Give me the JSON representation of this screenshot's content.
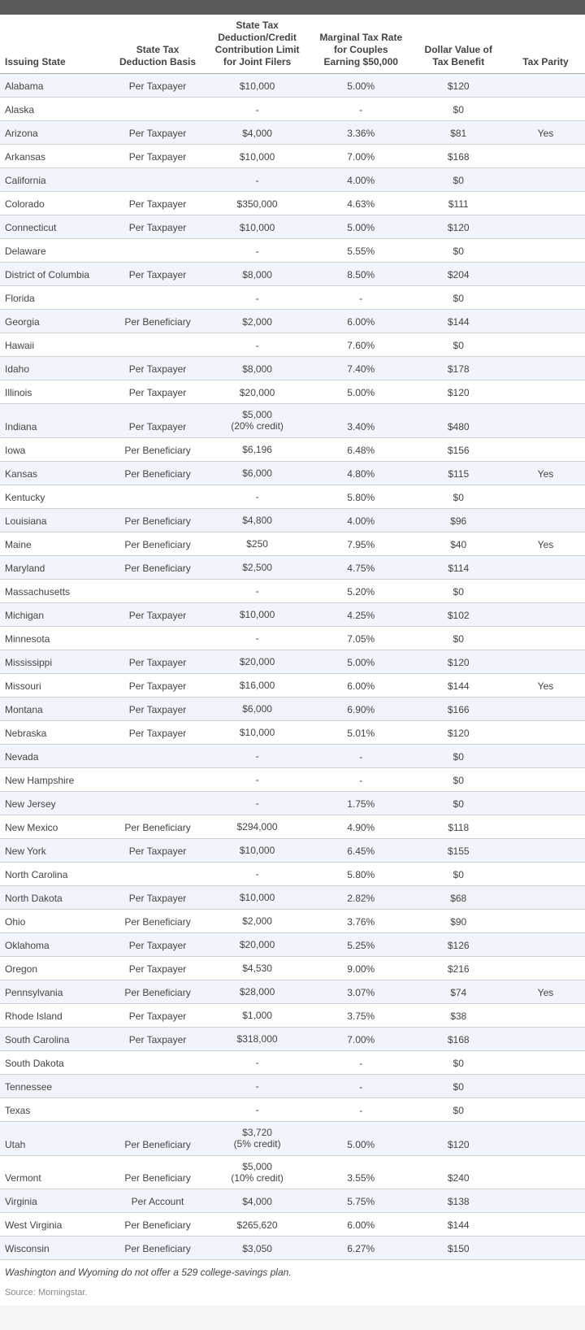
{
  "columns": [
    "Issuing State",
    "State Tax Deduction Basis",
    "State Tax Deduction/Credit Contribution Limit for Joint Filers",
    "Marginal Tax Rate for Couples Earning $50,000",
    "Dollar Value of Tax Benefit",
    "Tax Parity"
  ],
  "rows": [
    {
      "state": "Alabama",
      "basis": "Per Taxpayer",
      "limit": "$10,000",
      "rate": "5.00%",
      "value": "$120",
      "parity": ""
    },
    {
      "state": "Alaska",
      "basis": "",
      "limit": "-",
      "rate": "-",
      "value": "$0",
      "parity": ""
    },
    {
      "state": "Arizona",
      "basis": "Per Taxpayer",
      "limit": "$4,000",
      "rate": "3.36%",
      "value": "$81",
      "parity": "Yes"
    },
    {
      "state": "Arkansas",
      "basis": "Per Taxpayer",
      "limit": "$10,000",
      "rate": "7.00%",
      "value": "$168",
      "parity": ""
    },
    {
      "state": "California",
      "basis": "",
      "limit": "-",
      "rate": "4.00%",
      "value": "$0",
      "parity": ""
    },
    {
      "state": "Colorado",
      "basis": "Per Taxpayer",
      "limit": "$350,000",
      "rate": "4.63%",
      "value": "$111",
      "parity": ""
    },
    {
      "state": "Connecticut",
      "basis": "Per Taxpayer",
      "limit": "$10,000",
      "rate": "5.00%",
      "value": "$120",
      "parity": ""
    },
    {
      "state": "Delaware",
      "basis": "",
      "limit": "-",
      "rate": "5.55%",
      "value": "$0",
      "parity": ""
    },
    {
      "state": "District of Columbia",
      "basis": "Per Taxpayer",
      "limit": "$8,000",
      "rate": "8.50%",
      "value": "$204",
      "parity": ""
    },
    {
      "state": "Florida",
      "basis": "",
      "limit": "-",
      "rate": "-",
      "value": "$0",
      "parity": ""
    },
    {
      "state": "Georgia",
      "basis": "Per Beneficiary",
      "limit": "$2,000",
      "rate": "6.00%",
      "value": "$144",
      "parity": ""
    },
    {
      "state": "Hawaii",
      "basis": "",
      "limit": "-",
      "rate": "7.60%",
      "value": "$0",
      "parity": ""
    },
    {
      "state": "Idaho",
      "basis": "Per Taxpayer",
      "limit": "$8,000",
      "rate": "7.40%",
      "value": "$178",
      "parity": ""
    },
    {
      "state": "Illinois",
      "basis": "Per Taxpayer",
      "limit": "$20,000",
      "rate": "5.00%",
      "value": "$120",
      "parity": ""
    },
    {
      "state": "Indiana",
      "basis": "Per Taxpayer",
      "limit": "$5,000\n(20% credit)",
      "rate": "3.40%",
      "value": "$480",
      "parity": ""
    },
    {
      "state": "Iowa",
      "basis": "Per Beneficiary",
      "limit": "$6,196",
      "rate": "6.48%",
      "value": "$156",
      "parity": ""
    },
    {
      "state": "Kansas",
      "basis": "Per Beneficiary",
      "limit": "$6,000",
      "rate": "4.80%",
      "value": "$115",
      "parity": "Yes"
    },
    {
      "state": "Kentucky",
      "basis": "",
      "limit": "-",
      "rate": "5.80%",
      "value": "$0",
      "parity": ""
    },
    {
      "state": "Louisiana",
      "basis": "Per Beneficiary",
      "limit": "$4,800",
      "rate": "4.00%",
      "value": "$96",
      "parity": ""
    },
    {
      "state": "Maine",
      "basis": "Per Beneficiary",
      "limit": "$250",
      "rate": "7.95%",
      "value": "$40",
      "parity": "Yes"
    },
    {
      "state": "Maryland",
      "basis": "Per Beneficiary",
      "limit": "$2,500",
      "rate": "4.75%",
      "value": "$114",
      "parity": ""
    },
    {
      "state": "Massachusetts",
      "basis": "",
      "limit": "-",
      "rate": "5.20%",
      "value": "$0",
      "parity": ""
    },
    {
      "state": "Michigan",
      "basis": "Per Taxpayer",
      "limit": "$10,000",
      "rate": "4.25%",
      "value": "$102",
      "parity": ""
    },
    {
      "state": "Minnesota",
      "basis": "",
      "limit": "-",
      "rate": "7.05%",
      "value": "$0",
      "parity": ""
    },
    {
      "state": "Mississippi",
      "basis": "Per Taxpayer",
      "limit": "$20,000",
      "rate": "5.00%",
      "value": "$120",
      "parity": ""
    },
    {
      "state": "Missouri",
      "basis": "Per Taxpayer",
      "limit": "$16,000",
      "rate": "6.00%",
      "value": "$144",
      "parity": "Yes"
    },
    {
      "state": "Montana",
      "basis": "Per Taxpayer",
      "limit": "$6,000",
      "rate": "6.90%",
      "value": "$166",
      "parity": ""
    },
    {
      "state": "Nebraska",
      "basis": "Per Taxpayer",
      "limit": "$10,000",
      "rate": "5.01%",
      "value": "$120",
      "parity": ""
    },
    {
      "state": "Nevada",
      "basis": "",
      "limit": "-",
      "rate": "-",
      "value": "$0",
      "parity": ""
    },
    {
      "state": "New Hampshire",
      "basis": "",
      "limit": "-",
      "rate": "-",
      "value": "$0",
      "parity": ""
    },
    {
      "state": "New Jersey",
      "basis": "",
      "limit": "-",
      "rate": "1.75%",
      "value": "$0",
      "parity": ""
    },
    {
      "state": "New Mexico",
      "basis": "Per Beneficiary",
      "limit": "$294,000",
      "rate": "4.90%",
      "value": "$118",
      "parity": ""
    },
    {
      "state": "New York",
      "basis": "Per Taxpayer",
      "limit": "$10,000",
      "rate": "6.45%",
      "value": "$155",
      "parity": ""
    },
    {
      "state": "North Carolina",
      "basis": "",
      "limit": "-",
      "rate": "5.80%",
      "value": "$0",
      "parity": ""
    },
    {
      "state": "North Dakota",
      "basis": "Per Taxpayer",
      "limit": "$10,000",
      "rate": "2.82%",
      "value": "$68",
      "parity": ""
    },
    {
      "state": "Ohio",
      "basis": "Per Beneficiary",
      "limit": "$2,000",
      "rate": "3.76%",
      "value": "$90",
      "parity": ""
    },
    {
      "state": "Oklahoma",
      "basis": "Per Taxpayer",
      "limit": "$20,000",
      "rate": "5.25%",
      "value": "$126",
      "parity": ""
    },
    {
      "state": "Oregon",
      "basis": "Per Taxpayer",
      "limit": "$4,530",
      "rate": "9.00%",
      "value": "$216",
      "parity": ""
    },
    {
      "state": "Pennsylvania",
      "basis": "Per Beneficiary",
      "limit": "$28,000",
      "rate": "3.07%",
      "value": "$74",
      "parity": "Yes"
    },
    {
      "state": "Rhode Island",
      "basis": "Per Taxpayer",
      "limit": "$1,000",
      "rate": "3.75%",
      "value": "$38",
      "parity": ""
    },
    {
      "state": "South Carolina",
      "basis": "Per Taxpayer",
      "limit": "$318,000",
      "rate": "7.00%",
      "value": "$168",
      "parity": ""
    },
    {
      "state": "South Dakota",
      "basis": "",
      "limit": "-",
      "rate": "-",
      "value": "$0",
      "parity": ""
    },
    {
      "state": "Tennessee",
      "basis": "",
      "limit": "-",
      "rate": "-",
      "value": "$0",
      "parity": ""
    },
    {
      "state": "Texas",
      "basis": "",
      "limit": "-",
      "rate": "-",
      "value": "$0",
      "parity": ""
    },
    {
      "state": "Utah",
      "basis": "Per Beneficiary",
      "limit": "$3,720\n(5% credit)",
      "rate": "5.00%",
      "value": "$120",
      "parity": ""
    },
    {
      "state": "Vermont",
      "basis": "Per Beneficiary",
      "limit": "$5,000\n(10% credit)",
      "rate": "3.55%",
      "value": "$240",
      "parity": ""
    },
    {
      "state": "Virginia",
      "basis": "Per Account",
      "limit": "$4,000",
      "rate": "5.75%",
      "value": "$138",
      "parity": ""
    },
    {
      "state": "West Virginia",
      "basis": "Per Beneficiary",
      "limit": "$265,620",
      "rate": "6.00%",
      "value": "$144",
      "parity": ""
    },
    {
      "state": "Wisconsin",
      "basis": "Per Beneficiary",
      "limit": "$3,050",
      "rate": "6.27%",
      "value": "$150",
      "parity": ""
    }
  ],
  "footnote": "Washington and Wyoming do not offer a 529 college-savings plan.",
  "source": "Source: Morningstar."
}
